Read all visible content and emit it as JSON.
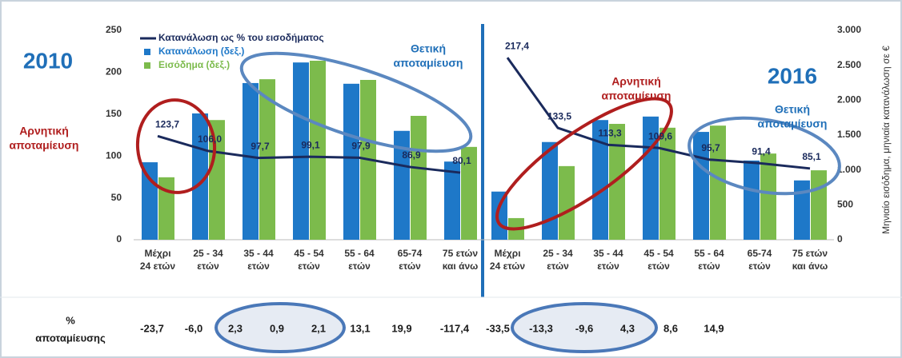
{
  "savings_title": [
    "%",
    "αποταμίευσης"
  ],
  "chart_data": [
    {
      "type": "bar",
      "label": "2010",
      "categories": [
        [
          "Μέχρι",
          "24 ετών"
        ],
        [
          "25 - 34",
          "ετών"
        ],
        [
          "35 - 44",
          "ετών"
        ],
        [
          "45 - 54",
          "ετών"
        ],
        [
          "55 - 64",
          "ετών"
        ],
        [
          "65-74",
          "ετών"
        ],
        [
          "75 ετών",
          "και άνω"
        ]
      ],
      "series": [
        {
          "name": "Κατανάλωση ως % του εισοδήματος",
          "type": "line",
          "color": "#1a2a5c",
          "values": [
            123.7,
            106.0,
            97.7,
            99.1,
            97.9,
            86.9,
            80.1
          ],
          "value_labels": [
            "123,7",
            "106,0",
            "97,7",
            "99,1",
            "97,9",
            "86,9",
            "80,1"
          ]
        },
        {
          "name": "Κατανάλωση (δεξ.)",
          "axis": "y2",
          "color": "#1e78c8",
          "values": [
            1110,
            1810,
            2245,
            2540,
            2235,
            1560,
            1120
          ]
        },
        {
          "name": "Εισόδημα (δεξ.)",
          "axis": "y2",
          "color": "#7cbb4c",
          "values": [
            895,
            1715,
            2300,
            2565,
            2290,
            1775,
            1330
          ]
        }
      ],
      "ylim": [
        0,
        250
      ],
      "yticks": [
        0,
        50,
        100,
        150,
        200,
        250
      ],
      "y2lim": [
        0,
        3000
      ],
      "legend": "top-left",
      "annotations": [
        {
          "lines": [
            "Θετική",
            "αποταμίευση"
          ],
          "color": "#1f6fb8"
        },
        {
          "lines": [
            "Αρνητική",
            "αποταμίευση"
          ],
          "color": "#b01e1e"
        }
      ],
      "savings_values": [
        -23.7,
        -6.0,
        2.3,
        0.9,
        2.1,
        13.1,
        19.9
      ],
      "savings_labels": [
        "-23,7",
        "-6,0",
        "2,3",
        "0,9",
        "2,1",
        "13,1",
        "19,9"
      ]
    },
    {
      "type": "bar",
      "label": "2016",
      "categories": [
        [
          "Μέχρι",
          "24 ετών"
        ],
        [
          "25 - 34",
          "ετών"
        ],
        [
          "35 - 44",
          "ετών"
        ],
        [
          "45 - 54",
          "ετών"
        ],
        [
          "55 - 64",
          "ετών"
        ],
        [
          "65-74",
          "ετών"
        ],
        [
          "75 ετών",
          "και άνω"
        ]
      ],
      "series": [
        {
          "type": "line",
          "color": "#1a2a5c",
          "values": [
            217.4,
            133.5,
            113.3,
            109.6,
            95.7,
            91.4,
            85.1
          ],
          "value_labels": [
            "217,4",
            "133,5",
            "113,3",
            "109,6",
            "95,7",
            "91,4",
            "85,1"
          ]
        },
        {
          "axis": "y2",
          "color": "#1e78c8",
          "values": [
            690,
            1400,
            1715,
            1765,
            1545,
            1135,
            850
          ]
        },
        {
          "axis": "y2",
          "color": "#7cbb4c",
          "values": [
            310,
            1055,
            1660,
            1605,
            1635,
            1235,
            995
          ]
        }
      ],
      "ylim": [
        0,
        250
      ],
      "y2lim": [
        0,
        3000
      ],
      "y2ticks": [
        0,
        {
          "value": 500,
          "label": "500"
        },
        {
          "value": 1000,
          "label": "1.000"
        },
        {
          "value": 1500,
          "label": "1.500"
        },
        {
          "value": 2000,
          "label": "2.000"
        },
        {
          "value": 2500,
          "label": "2.500"
        },
        {
          "value": 3000,
          "label": "3.000"
        }
      ],
      "y2label": "Μηνιαίο εισόδημα, μηνιαία κατανάλωση σε €",
      "annotations": [
        {
          "lines": [
            "Αρνητική",
            "αποταμίευση"
          ],
          "color": "#b01e1e"
        },
        {
          "lines": [
            "Θετική",
            "αποταμίευση"
          ],
          "color": "#1f6fb8"
        }
      ],
      "savings_values": [
        -117.4,
        -33.5,
        -13.3,
        -9.6,
        4.3,
        8.6,
        14.9
      ],
      "savings_labels": [
        "-117,4",
        "-33,5",
        "-13,3",
        "-9,6",
        "4,3",
        "8,6",
        "14,9"
      ]
    }
  ]
}
